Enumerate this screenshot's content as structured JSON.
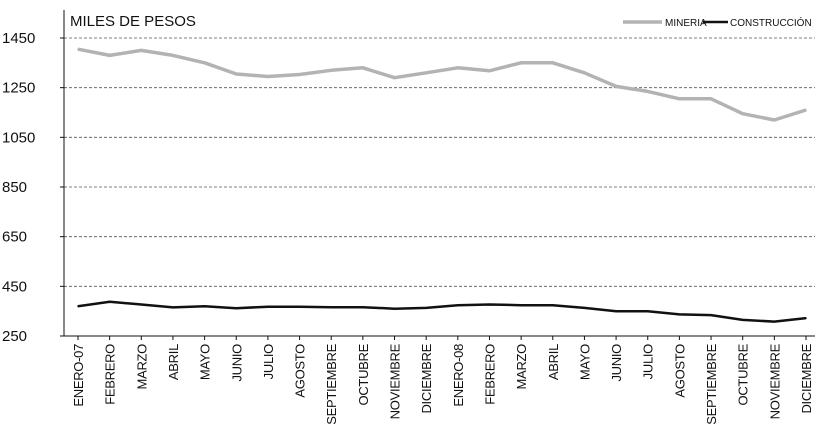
{
  "chart_data": {
    "type": "line",
    "ylabel": "MILES DE PESOS",
    "ylim": [
      250,
      1450
    ],
    "yticks": [
      250,
      450,
      650,
      850,
      1050,
      1250,
      1450
    ],
    "grid": "horizontal dashed",
    "legend_position": "top-right",
    "categories": [
      "ENERO-07",
      "FEBRERO",
      "MARZO",
      "ABRIL",
      "MAYO",
      "JUNIO",
      "JULIO",
      "AGOSTO",
      "SEPTIEMBRE",
      "OCTUBRE",
      "NOVIEMBRE",
      "DICIEMBRE",
      "ENERO-08",
      "FEBRERO",
      "MARZO",
      "ABRIL",
      "MAYO",
      "JUNIO",
      "JULIO",
      "AGOSTO",
      "SEPTIEMBRE",
      "OCTUBRE",
      "NOVIEMBRE",
      "DICIEMBRE"
    ],
    "series": [
      {
        "name": "MINERIA",
        "color": "#b3b3b3",
        "values": [
          1405,
          1380,
          1400,
          1380,
          1350,
          1305,
          1295,
          1303,
          1320,
          1330,
          1290,
          1310,
          1330,
          1318,
          1350,
          1350,
          1310,
          1255,
          1235,
          1205,
          1205,
          1145,
          1120,
          1160
        ]
      },
      {
        "name": "CONSTRUCCIÓN",
        "color": "#111111",
        "values": [
          370,
          388,
          377,
          365,
          370,
          362,
          368,
          368,
          366,
          366,
          360,
          363,
          374,
          377,
          374,
          374,
          363,
          350,
          350,
          337,
          334,
          315,
          308,
          322
        ]
      }
    ]
  }
}
